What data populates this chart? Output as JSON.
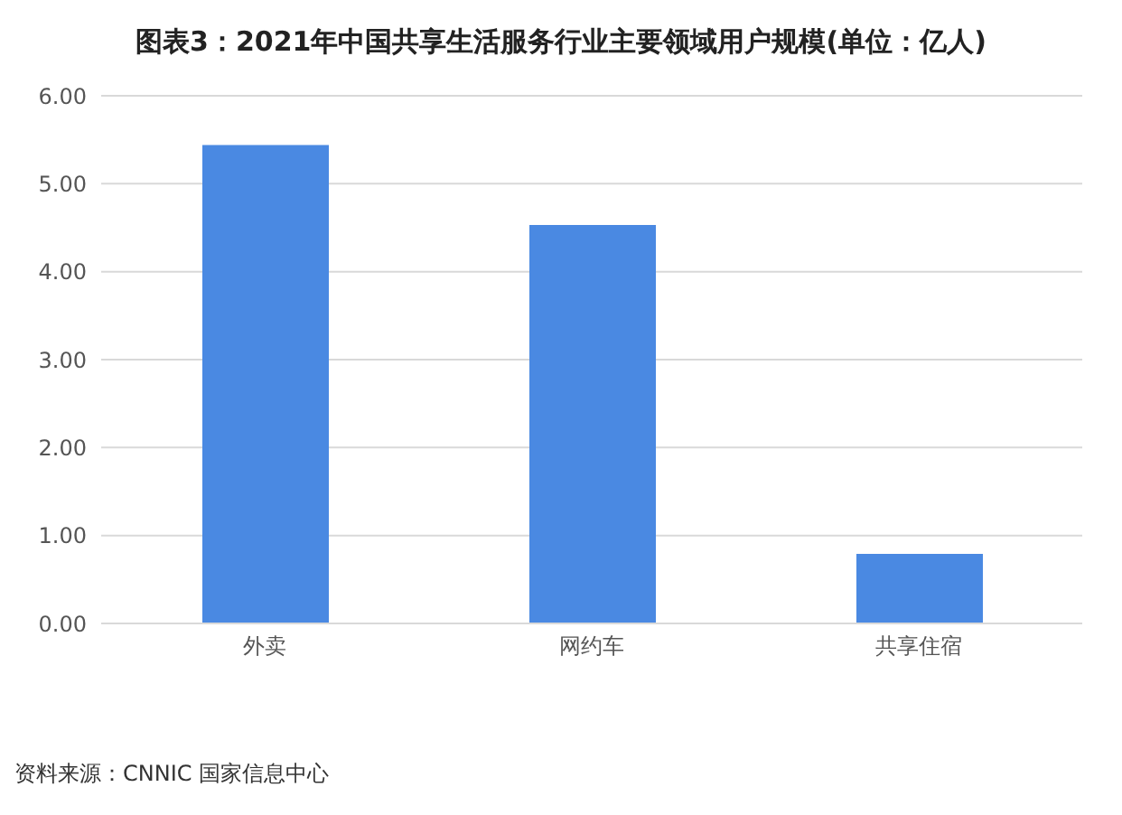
{
  "chart_data": {
    "type": "bar",
    "title": "图表3：2021年中国共享生活服务行业主要领域用户规模(单位：亿人)",
    "categories": [
      "外卖",
      "网约车",
      "共享住宿"
    ],
    "values": [
      5.44,
      4.53,
      0.79
    ],
    "color": "#4a89e2",
    "ylim": [
      0,
      6
    ],
    "yticks": [
      {
        "value": 0,
        "label": "0.00"
      },
      {
        "value": 1,
        "label": "1.00"
      },
      {
        "value": 2,
        "label": "2.00"
      },
      {
        "value": 3,
        "label": "3.00"
      },
      {
        "value": 4,
        "label": "4.00"
      },
      {
        "value": 5,
        "label": "5.00"
      },
      {
        "value": 6,
        "label": "6.00"
      }
    ],
    "grid": "y",
    "annotations": [
      "资料来源：CNNIC 国家信息中心"
    ]
  }
}
